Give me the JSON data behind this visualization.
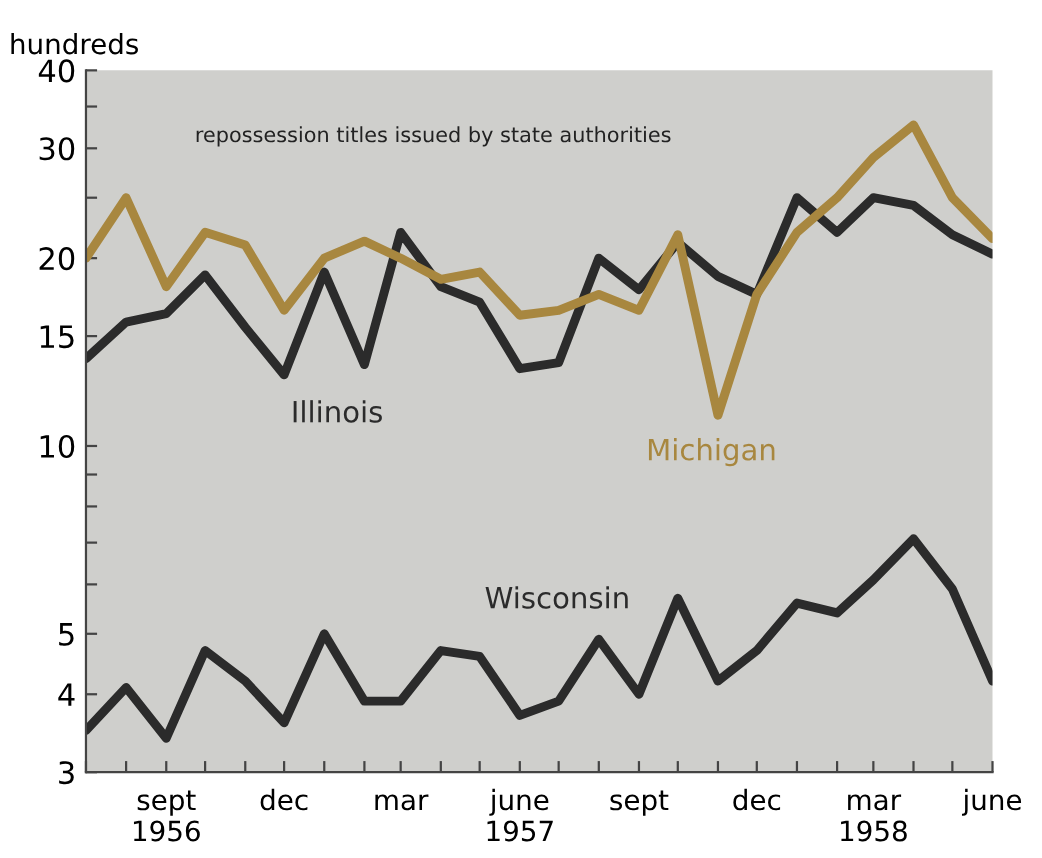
{
  "chart_data": {
    "type": "line",
    "title": "repossession titles issued by state authorities",
    "ylabel": "hundreds",
    "x": [
      "1956-07",
      "1956-08",
      "1956-09",
      "1956-10",
      "1956-11",
      "1956-12",
      "1957-01",
      "1957-02",
      "1957-03",
      "1957-04",
      "1957-05",
      "1957-06",
      "1957-07",
      "1957-08",
      "1957-09",
      "1957-10",
      "1957-11",
      "1957-12",
      "1958-01",
      "1958-02",
      "1958-03",
      "1958-04",
      "1958-05",
      "1958-06"
    ],
    "series": [
      {
        "name": "Illinois",
        "color": "#2b2b2b",
        "values": [
          13.8,
          15.8,
          16.3,
          18.8,
          15.5,
          13,
          19,
          13.5,
          22,
          18,
          17,
          13.3,
          13.6,
          20,
          17.8,
          21.2,
          18.7,
          17.5,
          25,
          22,
          25,
          24.3,
          21.8,
          20.3
        ]
      },
      {
        "name": "Michigan",
        "color": "#a8873f",
        "values": [
          20,
          25,
          18,
          22,
          21,
          16.5,
          20,
          21.3,
          20,
          18.5,
          19,
          16.2,
          16.5,
          17.5,
          16.5,
          21.8,
          11.2,
          17.5,
          22,
          25,
          29,
          32.7,
          25,
          21.5
        ]
      },
      {
        "name": "Wisconsin",
        "color": "#2b2b2b",
        "values": [
          3.5,
          4.1,
          3.4,
          4.7,
          4.2,
          3.6,
          5,
          3.9,
          3.9,
          4.7,
          4.6,
          3.7,
          3.9,
          4.9,
          4,
          5.7,
          4.2,
          4.7,
          5.6,
          5.4,
          6.1,
          7.1,
          5.9,
          4.2
        ]
      }
    ],
    "log": true,
    "ylim": [
      3,
      40
    ],
    "yticks": [
      3,
      4,
      5,
      {
        "value": 6,
        "label": null
      },
      {
        "value": 7,
        "label": null
      },
      {
        "value": 8,
        "label": null
      },
      {
        "value": 9,
        "label": null
      },
      10,
      15,
      20,
      {
        "value": 25,
        "label": null
      },
      30,
      {
        "value": 35,
        "label": null
      },
      40
    ],
    "xlim": [
      "1956-07",
      "1958-06"
    ],
    "xticks": [
      {
        "value": "1956-07",
        "label": null
      },
      {
        "value": "1956-08",
        "label": null
      },
      {
        "value": "1956-09",
        "label": "sept\n1956"
      },
      {
        "value": "1956-10",
        "label": null
      },
      {
        "value": "1956-11",
        "label": null
      },
      {
        "value": "1956-12",
        "label": "dec"
      },
      {
        "value": "1957-01",
        "label": null
      },
      {
        "value": "1957-02",
        "label": null
      },
      {
        "value": "1957-03",
        "label": "mar"
      },
      {
        "value": "1957-04",
        "label": null
      },
      {
        "value": "1957-05",
        "label": null
      },
      {
        "value": "1957-06",
        "label": "june\n1957"
      },
      {
        "value": "1957-07",
        "label": null
      },
      {
        "value": "1957-08",
        "label": null
      },
      {
        "value": "1957-09",
        "label": "sept"
      },
      {
        "value": "1957-10",
        "label": null
      },
      {
        "value": "1957-11",
        "label": null
      },
      {
        "value": "1957-12",
        "label": "dec"
      },
      {
        "value": "1958-01",
        "label": null
      },
      {
        "value": "1958-02",
        "label": null
      },
      {
        "value": "1958-03",
        "label": "mar\n1958"
      },
      {
        "value": "1958-04",
        "label": null
      },
      {
        "value": "1958-05",
        "label": null
      },
      {
        "value": "1958-06",
        "label": "june"
      }
    ],
    "grid": false,
    "legend": false,
    "marker": "none",
    "line_style": "solid"
  }
}
